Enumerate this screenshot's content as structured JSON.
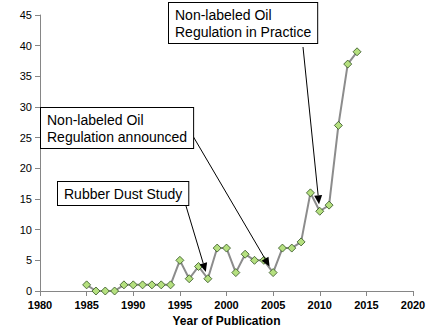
{
  "chart_data": {
    "type": "line",
    "x_label": "Year of Publication",
    "x": [
      1985,
      1986,
      1987,
      1988,
      1989,
      1990,
      1991,
      1992,
      1993,
      1994,
      1995,
      1996,
      1997,
      1998,
      1999,
      2000,
      2001,
      2002,
      2003,
      2004,
      2005,
      2006,
      2007,
      2008,
      2009,
      2010,
      2011,
      2012,
      2013,
      2014
    ],
    "values": [
      1,
      0,
      0,
      0,
      1,
      1,
      1,
      1,
      1,
      1,
      5,
      2,
      4,
      2,
      7,
      7,
      3,
      6,
      5,
      5,
      3,
      7,
      7,
      8,
      16,
      13,
      14,
      27,
      37,
      39
    ],
    "color": "#b5e07f",
    "marker": "diamond",
    "xlim": [
      1980,
      2020
    ],
    "xticks": [
      1980,
      1985,
      1990,
      1995,
      2000,
      2005,
      2010,
      2015,
      2020
    ],
    "ylim": [
      0,
      45
    ],
    "yticks": [
      0,
      5,
      10,
      15,
      20,
      25,
      30,
      35,
      40,
      45
    ],
    "grid": false,
    "annotations": [
      {
        "text": "Rubber Dust Study",
        "x": 1998,
        "y": 2
      },
      {
        "text": "Non-labeled Oil\nRegulation announced",
        "x": 2005,
        "y": 3
      },
      {
        "text": "Non-labeled Oil\nRegulation in Practice",
        "x": 2010,
        "y": 13
      }
    ]
  }
}
